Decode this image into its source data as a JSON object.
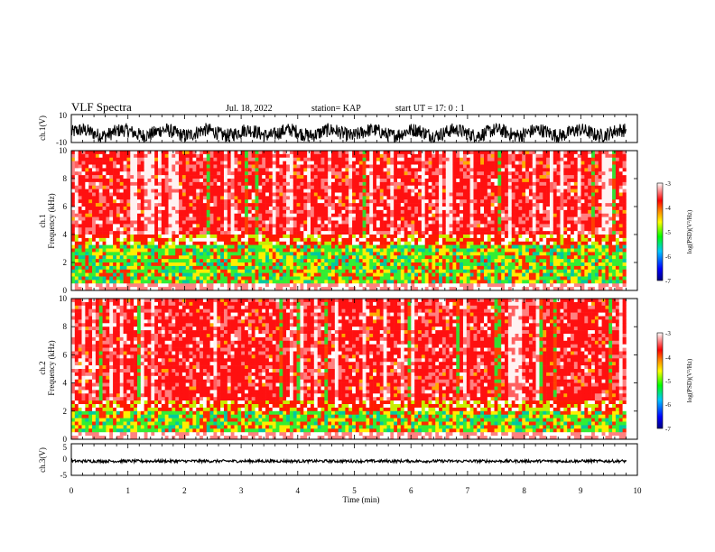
{
  "header": {
    "title": "VLF Spectra",
    "date": "Jul. 18, 2022",
    "station": "station= KAP",
    "start": "start UT = 17: 0 : 1"
  },
  "chart_data": [
    {
      "type": "line",
      "panel": "ch1-waveform",
      "ylabel": "ch.1(V)",
      "ylim": [
        -10,
        10
      ],
      "y_ticks": [
        "10",
        "-10"
      ],
      "xlim": [
        0,
        10
      ],
      "description_values": {
        "typical_range": [
          -8,
          2
        ]
      }
    },
    {
      "type": "heatmap",
      "panel": "ch1-spectrogram",
      "ylabel": "Frequency (kHz)",
      "channel_label": "ch.1",
      "ylim": [
        0,
        10
      ],
      "y_ticks": [
        "0",
        "2",
        "4",
        "6",
        "8",
        "10"
      ],
      "xlim": [
        0,
        9.8
      ],
      "colorbar": {
        "label": "log(PSD)(V²/Hz)",
        "range": [
          -7,
          -3
        ],
        "ticks": [
          "-3",
          "-4",
          "-5",
          "-6",
          "-7"
        ]
      }
    },
    {
      "type": "heatmap",
      "panel": "ch2-spectrogram",
      "ylabel": "Frequency (kHz)",
      "channel_label": "ch.2",
      "ylim": [
        0,
        10
      ],
      "y_ticks": [
        "0",
        "2",
        "4",
        "6",
        "8",
        "10"
      ],
      "xlim": [
        0,
        9.8
      ],
      "colorbar": {
        "label": "log(PSD)(V²/Hz)",
        "range": [
          -7,
          -3
        ],
        "ticks": [
          "-3",
          "-4",
          "-5",
          "-6",
          "-7"
        ]
      }
    },
    {
      "type": "line",
      "panel": "ch3-waveform",
      "ylabel": "ch.3(V)",
      "ylim": [
        -5,
        5
      ],
      "y_ticks": [
        "5",
        "0",
        "-5"
      ],
      "xlim": [
        0,
        10
      ],
      "description_values": {
        "typical_value": -0.5
      }
    }
  ],
  "x_axis": {
    "label": "Time (min)",
    "ticks": [
      "0",
      "1",
      "2",
      "3",
      "4",
      "5",
      "6",
      "7",
      "8",
      "9",
      "10"
    ]
  },
  "colors": {
    "palette": [
      "#000080",
      "#0000ff",
      "#00ffff",
      "#00ff00",
      "#ffff00",
      "#ff8000",
      "#ff0000",
      "#ffffff"
    ]
  }
}
